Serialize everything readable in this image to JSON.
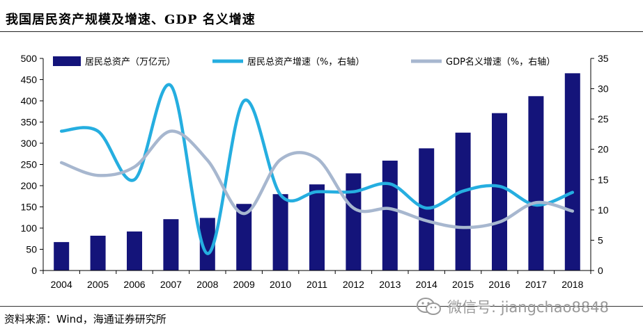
{
  "title": "我国居民资产规模及增速、GDP 名义增速",
  "source": "资料来源：Wind，海通证券研究所",
  "watermark": {
    "text": "微信号: jiangchao8848",
    "icon": "wechat-icon"
  },
  "colors": {
    "bar": "#14147a",
    "asset_growth": "#25aee0",
    "gdp_growth": "#a7b7cf",
    "axis": "#000000"
  },
  "chart_data": {
    "type": "bar",
    "categories": [
      "2004",
      "2005",
      "2006",
      "2007",
      "2008",
      "2009",
      "2010",
      "2011",
      "2012",
      "2013",
      "2014",
      "2015",
      "2016",
      "2017",
      "2018"
    ],
    "ylim": [
      0,
      500
    ],
    "yticks": [
      0,
      50,
      100,
      150,
      200,
      250,
      300,
      350,
      400,
      450,
      500
    ],
    "y2lim": [
      0,
      35
    ],
    "y2ticks": [
      0,
      5,
      10,
      15,
      20,
      25,
      30,
      35
    ],
    "grid": false,
    "legend_position": "top",
    "series": [
      {
        "name": "居民总资产（万亿元）",
        "kind": "bar",
        "axis": "left",
        "values": [
          67,
          82,
          92,
          121,
          124,
          157,
          180,
          203,
          229,
          259,
          288,
          325,
          371,
          411,
          465
        ]
      },
      {
        "name": "居民总资产增速（%，右轴）",
        "kind": "line",
        "axis": "right",
        "values": [
          23,
          23,
          15,
          30.5,
          2.8,
          28,
          12.5,
          13,
          13,
          14.3,
          10.3,
          13.1,
          13.9,
          10.8,
          12.9
        ]
      },
      {
        "name": "GDP名义增速（%，右轴）",
        "kind": "line",
        "axis": "right",
        "values": [
          17.8,
          15.7,
          17.1,
          23,
          18.2,
          9.4,
          18.3,
          18.5,
          10.3,
          10.2,
          8.2,
          7.1,
          8.0,
          11.2,
          9.8
        ]
      }
    ]
  }
}
